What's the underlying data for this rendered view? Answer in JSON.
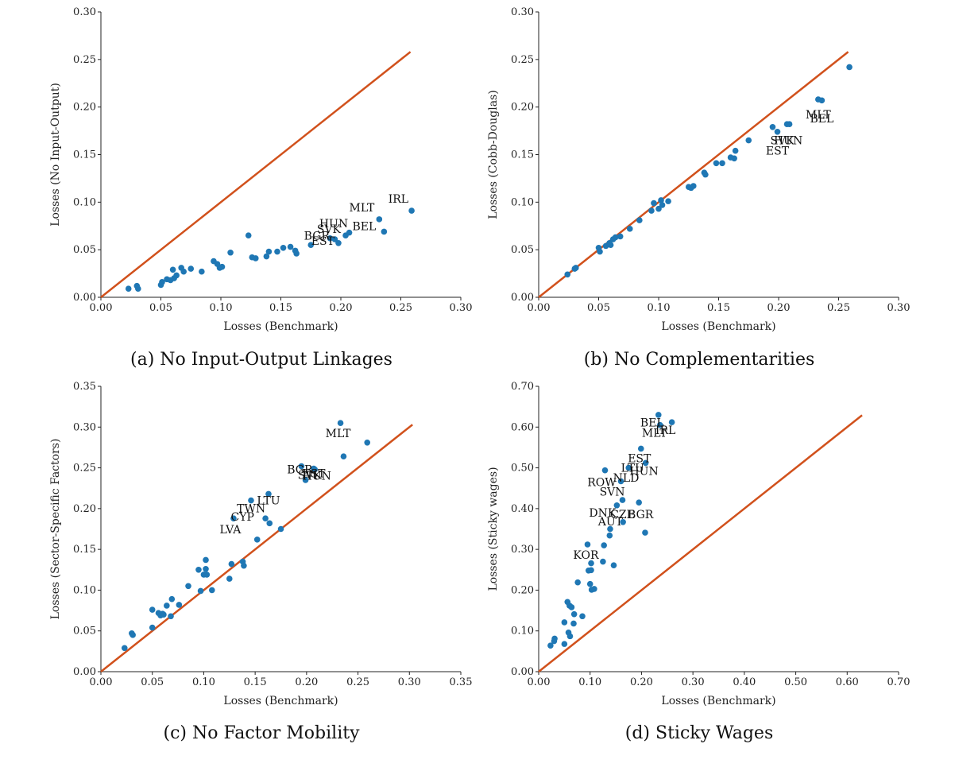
{
  "colors": {
    "points": "#1f77b4",
    "diagonal": "#d1511c",
    "axis": "#222222"
  },
  "chart_data": [
    {
      "type": "scatter",
      "caption": "(a) No Input-Output Linkages",
      "xlabel": "Losses (Benchmark)",
      "ylabel": "Losses (No Input-Output)",
      "xlim": [
        0,
        0.3
      ],
      "ylim": [
        0,
        0.3
      ],
      "xticks": [
        "0.00",
        "0.05",
        "0.10",
        "0.15",
        "0.20",
        "0.25",
        "0.30"
      ],
      "yticks": [
        "0.00",
        "0.05",
        "0.10",
        "0.15",
        "0.20",
        "0.25",
        "0.30"
      ],
      "diagonal_end": 0.258,
      "points": [
        [
          0.023,
          0.009
        ],
        [
          0.03,
          0.012
        ],
        [
          0.031,
          0.009
        ],
        [
          0.05,
          0.013
        ],
        [
          0.051,
          0.016
        ],
        [
          0.055,
          0.019
        ],
        [
          0.058,
          0.018
        ],
        [
          0.06,
          0.029
        ],
        [
          0.061,
          0.02
        ],
        [
          0.063,
          0.023
        ],
        [
          0.067,
          0.031
        ],
        [
          0.069,
          0.027
        ],
        [
          0.075,
          0.03
        ],
        [
          0.084,
          0.027
        ],
        [
          0.094,
          0.038
        ],
        [
          0.097,
          0.035
        ],
        [
          0.099,
          0.031
        ],
        [
          0.101,
          0.032
        ],
        [
          0.108,
          0.047
        ],
        [
          0.123,
          0.065
        ],
        [
          0.126,
          0.042
        ],
        [
          0.129,
          0.041
        ],
        [
          0.138,
          0.043
        ],
        [
          0.14,
          0.048
        ],
        [
          0.147,
          0.048
        ],
        [
          0.152,
          0.052
        ],
        [
          0.158,
          0.053
        ],
        [
          0.162,
          0.049
        ],
        [
          0.163,
          0.046
        ],
        [
          0.175,
          0.055
        ],
        [
          0.191,
          0.062
        ],
        [
          0.195,
          0.061
        ],
        [
          0.198,
          0.057
        ],
        [
          0.204,
          0.065
        ],
        [
          0.207,
          0.068
        ],
        [
          0.232,
          0.082
        ],
        [
          0.236,
          0.069
        ],
        [
          0.259,
          0.091
        ]
      ],
      "labels": [
        {
          "text": "IRL",
          "x": 0.259,
          "y": 0.091,
          "anchor": "end",
          "dx": -4,
          "dy": -10
        },
        {
          "text": "MLT",
          "x": 0.232,
          "y": 0.082,
          "anchor": "end",
          "dx": -6,
          "dy": -10
        },
        {
          "text": "BEL",
          "x": 0.232,
          "y": 0.069,
          "anchor": "end",
          "dx": -4,
          "dy": -2
        },
        {
          "text": "HUN",
          "x": 0.198,
          "y": 0.07,
          "anchor": "middle",
          "dx": -6,
          "dy": -4
        },
        {
          "text": "SVK",
          "x": 0.19,
          "y": 0.066,
          "anchor": "middle",
          "dx": 0,
          "dy": -2
        },
        {
          "text": "BGR",
          "x": 0.18,
          "y": 0.064,
          "anchor": "middle",
          "dx": 0,
          "dy": 4
        },
        {
          "text": "EST",
          "x": 0.185,
          "y": 0.06,
          "anchor": "middle",
          "dx": 0,
          "dy": 6
        }
      ]
    },
    {
      "type": "scatter",
      "caption": "(b) No Complementarities",
      "xlabel": "Losses (Benchmark)",
      "ylabel": "Losses (Cobb-Douglas)",
      "xlim": [
        0,
        0.3
      ],
      "ylim": [
        0,
        0.3
      ],
      "xticks": [
        "0.00",
        "0.05",
        "0.10",
        "0.15",
        "0.20",
        "0.25",
        "0.30"
      ],
      "yticks": [
        "0.00",
        "0.05",
        "0.10",
        "0.15",
        "0.20",
        "0.25",
        "0.30"
      ],
      "diagonal_end": 0.258,
      "points": [
        [
          0.024,
          0.024
        ],
        [
          0.03,
          0.03
        ],
        [
          0.031,
          0.031
        ],
        [
          0.05,
          0.052
        ],
        [
          0.051,
          0.048
        ],
        [
          0.056,
          0.054
        ],
        [
          0.059,
          0.057
        ],
        [
          0.06,
          0.055
        ],
        [
          0.062,
          0.061
        ],
        [
          0.064,
          0.063
        ],
        [
          0.068,
          0.064
        ],
        [
          0.076,
          0.072
        ],
        [
          0.084,
          0.081
        ],
        [
          0.094,
          0.091
        ],
        [
          0.096,
          0.099
        ],
        [
          0.1,
          0.093
        ],
        [
          0.102,
          0.102
        ],
        [
          0.103,
          0.097
        ],
        [
          0.108,
          0.101
        ],
        [
          0.125,
          0.116
        ],
        [
          0.127,
          0.115
        ],
        [
          0.129,
          0.117
        ],
        [
          0.138,
          0.131
        ],
        [
          0.139,
          0.129
        ],
        [
          0.148,
          0.141
        ],
        [
          0.153,
          0.141
        ],
        [
          0.16,
          0.147
        ],
        [
          0.163,
          0.146
        ],
        [
          0.164,
          0.154
        ],
        [
          0.175,
          0.165
        ],
        [
          0.195,
          0.179
        ],
        [
          0.199,
          0.174
        ],
        [
          0.207,
          0.182
        ],
        [
          0.209,
          0.182
        ],
        [
          0.233,
          0.208
        ],
        [
          0.236,
          0.207
        ],
        [
          0.259,
          0.242
        ]
      ],
      "labels": [
        {
          "text": "MLT",
          "x": 0.233,
          "y": 0.188,
          "anchor": "middle",
          "dx": 0,
          "dy": 0
        },
        {
          "text": "BEL",
          "x": 0.236,
          "y": 0.184,
          "anchor": "middle",
          "dx": 0,
          "dy": 0
        },
        {
          "text": "HUN",
          "x": 0.208,
          "y": 0.161,
          "anchor": "middle",
          "dx": 0,
          "dy": 0
        },
        {
          "text": "SVK",
          "x": 0.203,
          "y": 0.161,
          "anchor": "middle",
          "dx": 0,
          "dy": 0
        },
        {
          "text": "EST",
          "x": 0.199,
          "y": 0.15,
          "anchor": "middle",
          "dx": 0,
          "dy": 0
        }
      ]
    },
    {
      "type": "scatter",
      "caption": "(c) No Factor Mobility",
      "xlabel": "Losses (Benchmark)",
      "ylabel": "Losses (Sector-Specific Factors)",
      "xlim": [
        0,
        0.35
      ],
      "ylim": [
        0,
        0.35
      ],
      "xticks": [
        "0.00",
        "0.05",
        "0.10",
        "0.15",
        "0.20",
        "0.25",
        "0.30",
        "0.35"
      ],
      "yticks": [
        "0.00",
        "0.05",
        "0.10",
        "0.15",
        "0.20",
        "0.25",
        "0.30",
        "0.35"
      ],
      "diagonal_end": 0.303,
      "points": [
        [
          0.023,
          0.029
        ],
        [
          0.03,
          0.047
        ],
        [
          0.031,
          0.045
        ],
        [
          0.05,
          0.054
        ],
        [
          0.05,
          0.076
        ],
        [
          0.056,
          0.072
        ],
        [
          0.058,
          0.069
        ],
        [
          0.06,
          0.071
        ],
        [
          0.061,
          0.07
        ],
        [
          0.064,
          0.081
        ],
        [
          0.068,
          0.068
        ],
        [
          0.069,
          0.089
        ],
        [
          0.076,
          0.082
        ],
        [
          0.085,
          0.105
        ],
        [
          0.095,
          0.125
        ],
        [
          0.097,
          0.099
        ],
        [
          0.1,
          0.119
        ],
        [
          0.102,
          0.126
        ],
        [
          0.102,
          0.137
        ],
        [
          0.103,
          0.119
        ],
        [
          0.108,
          0.1
        ],
        [
          0.125,
          0.114
        ],
        [
          0.127,
          0.132
        ],
        [
          0.129,
          0.188
        ],
        [
          0.138,
          0.135
        ],
        [
          0.139,
          0.13
        ],
        [
          0.146,
          0.21
        ],
        [
          0.152,
          0.162
        ],
        [
          0.16,
          0.188
        ],
        [
          0.163,
          0.218
        ],
        [
          0.164,
          0.182
        ],
        [
          0.175,
          0.175
        ],
        [
          0.195,
          0.252
        ],
        [
          0.199,
          0.235
        ],
        [
          0.207,
          0.249
        ],
        [
          0.208,
          0.248
        ],
        [
          0.233,
          0.305
        ],
        [
          0.236,
          0.264
        ],
        [
          0.259,
          0.281
        ]
      ],
      "labels": [
        {
          "text": "MLT",
          "x": 0.233,
          "y": 0.305,
          "anchor": "middle",
          "dx": -3,
          "dy": 18
        },
        {
          "text": "BGR",
          "x": 0.195,
          "y": 0.252,
          "anchor": "middle",
          "dx": -2,
          "dy": 9
        },
        {
          "text": "SVK",
          "x": 0.203,
          "y": 0.247,
          "anchor": "middle",
          "dx": 0,
          "dy": 11
        },
        {
          "text": "EST",
          "x": 0.207,
          "y": 0.249,
          "anchor": "middle",
          "dx": 0,
          "dy": 11
        },
        {
          "text": "HUN",
          "x": 0.21,
          "y": 0.247,
          "anchor": "middle",
          "dx": 0,
          "dy": 12
        },
        {
          "text": "LTU",
          "x": 0.163,
          "y": 0.218,
          "anchor": "middle",
          "dx": 0,
          "dy": 13
        },
        {
          "text": "TWN",
          "x": 0.15,
          "y": 0.21,
          "anchor": "middle",
          "dx": -5,
          "dy": 15
        },
        {
          "text": "CYP",
          "x": 0.14,
          "y": 0.2,
          "anchor": "middle",
          "dx": -3,
          "dy": 15
        },
        {
          "text": "LVA",
          "x": 0.129,
          "y": 0.188,
          "anchor": "middle",
          "dx": -4,
          "dy": 19
        }
      ]
    },
    {
      "type": "scatter",
      "caption": "(d) Sticky Wages",
      "xlabel": "Losses (Benchmark)",
      "ylabel": "Losses (Sticky wages)",
      "xlim": [
        0,
        0.7
      ],
      "ylim": [
        0,
        0.7
      ],
      "xticks": [
        "0.00",
        "0.10",
        "0.20",
        "0.30",
        "0.40",
        "0.50",
        "0.60",
        "0.70"
      ],
      "yticks": [
        "0.00",
        "0.10",
        "0.20",
        "0.30",
        "0.40",
        "0.50",
        "0.60",
        "0.70"
      ],
      "diagonal_end": 0.629,
      "points": [
        [
          0.023,
          0.064
        ],
        [
          0.03,
          0.075
        ],
        [
          0.031,
          0.081
        ],
        [
          0.05,
          0.068
        ],
        [
          0.05,
          0.121
        ],
        [
          0.056,
          0.171
        ],
        [
          0.058,
          0.096
        ],
        [
          0.06,
          0.162
        ],
        [
          0.061,
          0.087
        ],
        [
          0.064,
          0.158
        ],
        [
          0.068,
          0.118
        ],
        [
          0.069,
          0.141
        ],
        [
          0.076,
          0.219
        ],
        [
          0.085,
          0.136
        ],
        [
          0.095,
          0.312
        ],
        [
          0.097,
          0.248
        ],
        [
          0.1,
          0.215
        ],
        [
          0.102,
          0.249
        ],
        [
          0.102,
          0.266
        ],
        [
          0.103,
          0.201
        ],
        [
          0.108,
          0.203
        ],
        [
          0.125,
          0.27
        ],
        [
          0.127,
          0.31
        ],
        [
          0.129,
          0.494
        ],
        [
          0.138,
          0.334
        ],
        [
          0.139,
          0.35
        ],
        [
          0.146,
          0.261
        ],
        [
          0.152,
          0.408
        ],
        [
          0.16,
          0.467
        ],
        [
          0.163,
          0.421
        ],
        [
          0.164,
          0.367
        ],
        [
          0.175,
          0.5
        ],
        [
          0.195,
          0.415
        ],
        [
          0.199,
          0.547
        ],
        [
          0.207,
          0.341
        ],
        [
          0.208,
          0.512
        ],
        [
          0.233,
          0.63
        ],
        [
          0.236,
          0.605
        ],
        [
          0.259,
          0.612
        ]
      ],
      "labels": [
        {
          "text": "BEL",
          "x": 0.236,
          "y": 0.605,
          "anchor": "middle",
          "dx": -10,
          "dy": 2
        },
        {
          "text": "IRL",
          "x": 0.259,
          "y": 0.612,
          "anchor": "middle",
          "dx": -8,
          "dy": 15
        },
        {
          "text": "MLT",
          "x": 0.233,
          "y": 0.605,
          "anchor": "middle",
          "dx": -5,
          "dy": 15
        },
        {
          "text": "EST",
          "x": 0.199,
          "y": 0.547,
          "anchor": "middle",
          "dx": -2,
          "dy": 17
        },
        {
          "text": "LTU",
          "x": 0.175,
          "y": 0.5,
          "anchor": "middle",
          "dx": 5,
          "dy": 5
        },
        {
          "text": "HUN",
          "x": 0.208,
          "y": 0.512,
          "anchor": "middle",
          "dx": -2,
          "dy": 15
        },
        {
          "text": "NLD",
          "x": 0.17,
          "y": 0.48,
          "anchor": "middle",
          "dx": 0,
          "dy": 7
        },
        {
          "text": "ROW",
          "x": 0.129,
          "y": 0.494,
          "anchor": "middle",
          "dx": -4,
          "dy": 20
        },
        {
          "text": "SVN",
          "x": 0.16,
          "y": 0.467,
          "anchor": "middle",
          "dx": -11,
          "dy": 18
        },
        {
          "text": "DNK",
          "x": 0.152,
          "y": 0.408,
          "anchor": "middle",
          "dx": -18,
          "dy": 14
        },
        {
          "text": "CZE",
          "x": 0.163,
          "y": 0.421,
          "anchor": "middle",
          "dx": 0,
          "dy": 23
        },
        {
          "text": "AUT",
          "x": 0.152,
          "y": 0.408,
          "anchor": "middle",
          "dx": -8,
          "dy": 25
        },
        {
          "text": "BGR",
          "x": 0.195,
          "y": 0.415,
          "anchor": "middle",
          "dx": 2,
          "dy": 20
        },
        {
          "text": "KOR",
          "x": 0.095,
          "y": 0.312,
          "anchor": "middle",
          "dx": -2,
          "dy": 18
        }
      ]
    }
  ]
}
